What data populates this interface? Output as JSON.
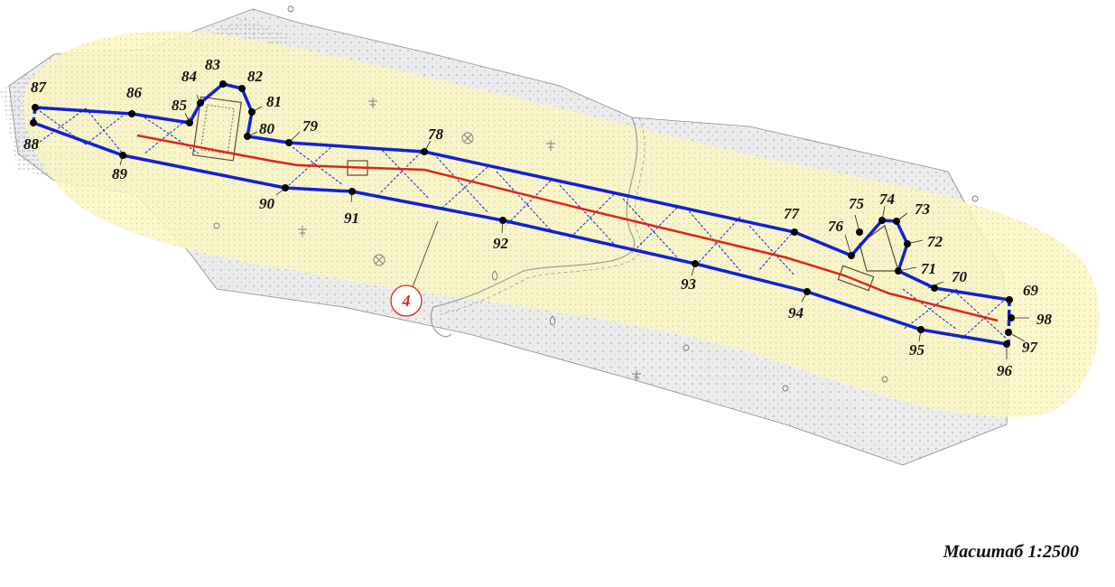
{
  "scale_label": "Масштаб 1:2500",
  "parcel_number": "4",
  "colors": {
    "boundary": "#1020d8",
    "axis": "#e0231b",
    "zone_fill": "#fbf7c4",
    "terrain_fill": "#e9e9e9",
    "marker": "#000000"
  },
  "points": [
    "69",
    "70",
    "71",
    "72",
    "73",
    "74",
    "75",
    "76",
    "77",
    "78",
    "79",
    "80",
    "81",
    "82",
    "83",
    "84",
    "85",
    "86",
    "87",
    "88",
    "89",
    "90",
    "91",
    "92",
    "93",
    "94",
    "95",
    "96",
    "97",
    "98"
  ]
}
